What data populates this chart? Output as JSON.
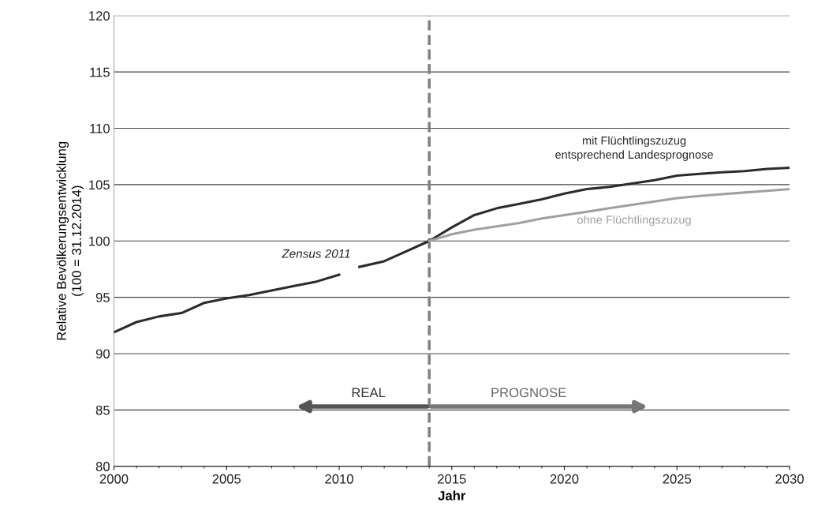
{
  "chart_data": {
    "type": "line",
    "xlabel": "Jahr",
    "ylabel": "Relative Bevölkerungsentwicklung\n(100 = 31.12.2014)",
    "xlim": [
      2000,
      2030
    ],
    "xticks": [
      2000,
      2005,
      2010,
      2015,
      2020,
      2025,
      2030
    ],
    "ylim": [
      80,
      120
    ],
    "yticks": [
      80,
      85,
      90,
      95,
      100,
      105,
      110,
      115,
      120
    ],
    "grid": "y",
    "legend": false,
    "marker": "none",
    "line_style": "solid",
    "series": [
      {
        "name": "mit Flüchtlingszuzug\nentsprechend Landesprognose",
        "color": "#2b2b2b",
        "x": [
          2000,
          2001,
          2002,
          2003,
          2004,
          2005,
          2006,
          2007,
          2008,
          2009,
          2010,
          2010.4,
          2010.9,
          2012,
          2013,
          2014,
          2015,
          2016,
          2017,
          2018,
          2019,
          2020,
          2021,
          2022,
          2023,
          2024,
          2025,
          2026,
          2027,
          2028,
          2029,
          2030
        ],
        "values": [
          91.9,
          92.8,
          93.3,
          93.6,
          94.5,
          94.9,
          95.2,
          95.6,
          96.0,
          96.4,
          97.0,
          null,
          97.7,
          98.2,
          99.1,
          100,
          101.2,
          102.3,
          102.9,
          103.3,
          103.7,
          104.2,
          104.6,
          104.8,
          105.1,
          105.4,
          105.8,
          105.96,
          106.1,
          106.2,
          106.4,
          106.5
        ]
      },
      {
        "name": "ohne Flüchtlingszuzug",
        "color": "#a0a0a0",
        "x": [
          2014,
          2015,
          2016,
          2017,
          2018,
          2019,
          2020,
          2021,
          2022,
          2023,
          2024,
          2025,
          2026,
          2027,
          2028,
          2029,
          2030
        ],
        "values": [
          100,
          100.6,
          101.0,
          101.3,
          101.6,
          102.0,
          102.3,
          102.6,
          102.9,
          103.2,
          103.5,
          103.8,
          104.0,
          104.15,
          104.3,
          104.45,
          104.6
        ]
      }
    ],
    "ref_lines": [
      {
        "axis": "x",
        "value": 2014,
        "color": "#808080",
        "line_style": "dashed"
      }
    ],
    "annotations": [
      {
        "text": "Zensus 2011",
        "x": 2010.9,
        "y": 97.7
      },
      "REAL",
      "PROGNOSE"
    ]
  }
}
